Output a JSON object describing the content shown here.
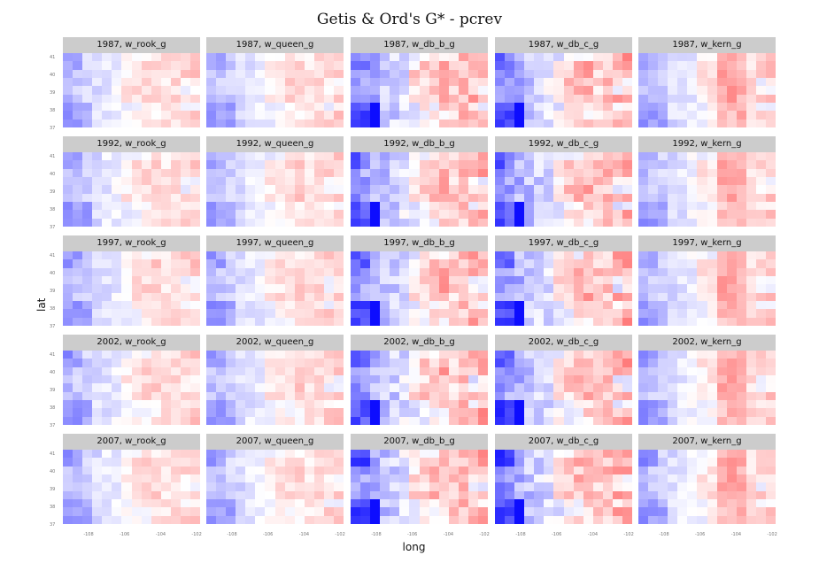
{
  "title": "Getis & Ord's G* - pcrev",
  "xlabel": "long",
  "ylabel": "lat",
  "chart_data": {
    "type": "heatmap",
    "description_of_panels": "facet grid of choropleth maps, rows = year, cols = weight",
    "years": [
      "1987",
      "1992",
      "1997",
      "2002",
      "2007"
    ],
    "weights": [
      "w_rook_g",
      "w_queen_g",
      "w_db_b_g",
      "w_db_c_g",
      "w_kern_g"
    ],
    "x_ticks": [
      "-108",
      "-106",
      "-104",
      "-102"
    ],
    "y_ticks": [
      "41",
      "40",
      "39",
      "38",
      "37"
    ],
    "xlim": [
      -109.1,
      -102
    ],
    "ylim": [
      36.9,
      41.1
    ],
    "color_scale": {
      "low": "#0000ff",
      "mid": "#ffffff",
      "high": "#ff0000"
    }
  }
}
